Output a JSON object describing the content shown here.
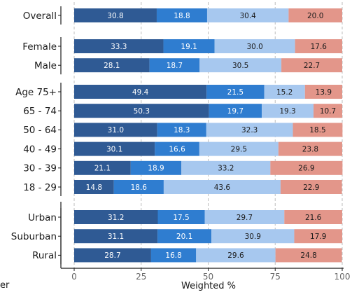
{
  "chart_data": {
    "type": "bar",
    "orientation": "horizontal",
    "stacked": true,
    "title": "",
    "xlabel": "Weighted %",
    "ylabel": "",
    "xlim": [
      0,
      100
    ],
    "xticks": [
      "0",
      "25",
      "50",
      "75",
      "100"
    ],
    "grid": true,
    "legend_fragment": "er",
    "series_colors": [
      "#2f5a94",
      "#2f7dd0",
      "#a7c8ef",
      "#e3968a"
    ],
    "label_colors": [
      "#ffffff",
      "#ffffff",
      "#1a1a1a",
      "#1a1a1a"
    ],
    "groups": [
      {
        "rows": [
          {
            "category": "Overall",
            "values": [
              30.8,
              18.8,
              30.4,
              20.0
            ],
            "labels": [
              "30.8",
              "18.8",
              "30.4",
              "20.0"
            ]
          }
        ]
      },
      {
        "rows": [
          {
            "category": "Female",
            "values": [
              33.3,
              19.1,
              30.0,
              17.6
            ],
            "labels": [
              "33.3",
              "19.1",
              "30.0",
              "17.6"
            ]
          },
          {
            "category": "Male",
            "values": [
              28.1,
              18.7,
              30.5,
              22.7
            ],
            "labels": [
              "28.1",
              "18.7",
              "30.5",
              "22.7"
            ]
          }
        ]
      },
      {
        "rows": [
          {
            "category": "Age 75+",
            "values": [
              49.4,
              21.5,
              15.2,
              13.9
            ],
            "labels": [
              "49.4",
              "21.5",
              "15.2",
              "13.9"
            ]
          },
          {
            "category": "65 - 74",
            "values": [
              50.3,
              19.7,
              19.3,
              10.7
            ],
            "labels": [
              "50.3",
              "19.7",
              "19.3",
              "10.7"
            ]
          },
          {
            "category": "50 - 64",
            "values": [
              31.0,
              18.3,
              32.3,
              18.5
            ],
            "labels": [
              "31.0",
              "18.3",
              "32.3",
              "18.5"
            ]
          },
          {
            "category": "40 - 49",
            "values": [
              30.1,
              16.6,
              29.5,
              23.8
            ],
            "labels": [
              "30.1",
              "16.6",
              "29.5",
              "23.8"
            ]
          },
          {
            "category": "30 - 39",
            "values": [
              21.1,
              18.9,
              33.2,
              26.9
            ],
            "labels": [
              "21.1",
              "18.9",
              "33.2",
              "26.9"
            ]
          },
          {
            "category": "18 - 29",
            "values": [
              14.8,
              18.6,
              43.6,
              22.9
            ],
            "labels": [
              "14.8",
              "18.6",
              "43.6",
              "22.9"
            ]
          }
        ]
      },
      {
        "rows": [
          {
            "category": "Urban",
            "values": [
              31.2,
              17.5,
              29.7,
              21.6
            ],
            "labels": [
              "31.2",
              "17.5",
              "29.7",
              "21.6"
            ]
          },
          {
            "category": "Suburban",
            "values": [
              31.1,
              20.1,
              30.9,
              17.9
            ],
            "labels": [
              "31.1",
              "20.1",
              "30.9",
              "17.9"
            ]
          },
          {
            "category": "Rural",
            "values": [
              28.7,
              16.8,
              29.6,
              24.8
            ],
            "labels": [
              "28.7",
              "16.8",
              "29.6",
              "24.8"
            ]
          }
        ]
      }
    ]
  }
}
